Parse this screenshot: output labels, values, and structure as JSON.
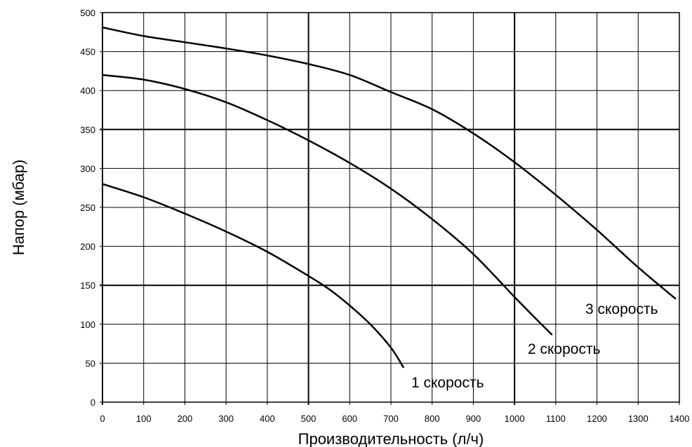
{
  "chart_data": {
    "type": "line",
    "title": "",
    "xlabel": "Производительность (л/ч)",
    "ylabel": "Напор (мбар)",
    "xlim": [
      0,
      1400
    ],
    "ylim": [
      0,
      500
    ],
    "xticks": [
      0,
      100,
      200,
      300,
      400,
      500,
      600,
      700,
      800,
      900,
      1000,
      1100,
      1200,
      1300,
      1400
    ],
    "yticks": [
      0,
      50,
      100,
      150,
      200,
      250,
      300,
      350,
      400,
      450,
      500
    ],
    "grid": true,
    "legend": "none",
    "series": [
      {
        "name": "1 скорость",
        "x": [
          0,
          100,
          200,
          300,
          400,
          500,
          550,
          600,
          650,
          700,
          730
        ],
        "y": [
          280,
          263,
          242,
          219,
          193,
          162,
          145,
          124,
          100,
          70,
          45
        ]
      },
      {
        "name": "2 скорость",
        "x": [
          0,
          100,
          200,
          300,
          400,
          500,
          600,
          700,
          800,
          900,
          1000,
          1050,
          1090
        ],
        "y": [
          420,
          414,
          402,
          385,
          362,
          336,
          307,
          274,
          235,
          190,
          135,
          108,
          87
        ]
      },
      {
        "name": "3 скорость",
        "x": [
          0,
          100,
          200,
          300,
          400,
          500,
          600,
          700,
          800,
          900,
          1000,
          1100,
          1200,
          1300,
          1390
        ],
        "y": [
          481,
          470,
          462,
          454,
          445,
          434,
          420,
          398,
          376,
          345,
          308,
          266,
          221,
          173,
          133
        ]
      }
    ]
  }
}
